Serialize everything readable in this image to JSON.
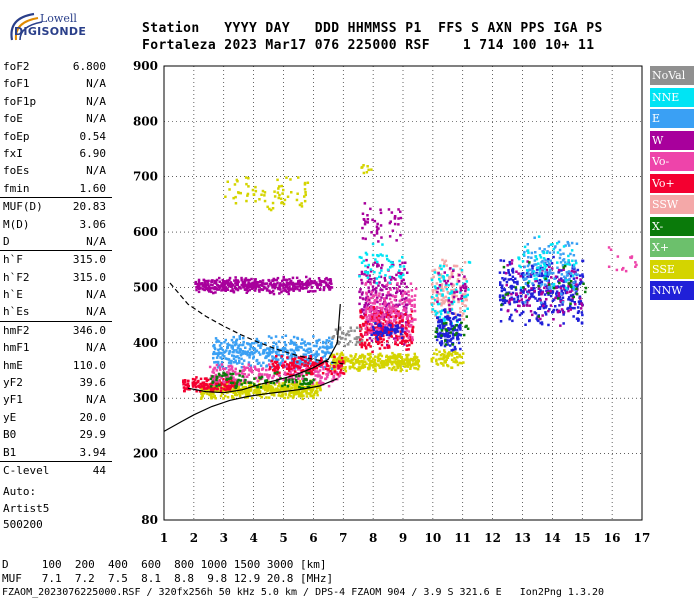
{
  "logo": {
    "line1": "Lowell",
    "line2": "DIGISONDE"
  },
  "header": {
    "line1": "Station   YYYY DAY   DDD HHMMSS P1  FFS S AXN PPS IGA PS",
    "line2": "Fortaleza 2023 Mar17 076 225000 RSF    1 714 100 10+ 11"
  },
  "params": [
    [
      {
        "label": "foF2",
        "value": "6.800"
      },
      {
        "label": "foF1",
        "value": "N/A"
      },
      {
        "label": "foF1p",
        "value": "N/A"
      },
      {
        "label": "foE",
        "value": "N/A"
      },
      {
        "label": "foEp",
        "value": "0.54"
      },
      {
        "label": "fxI",
        "value": "6.90"
      },
      {
        "label": "foEs",
        "value": "N/A"
      },
      {
        "label": "fmin",
        "value": "1.60"
      }
    ],
    [
      {
        "label": "MUF(D)",
        "value": "20.83"
      },
      {
        "label": "M(D)",
        "value": "3.06"
      },
      {
        "label": "D",
        "value": "N/A"
      }
    ],
    [
      {
        "label": "h`F",
        "value": "315.0"
      },
      {
        "label": "h`F2",
        "value": "315.0"
      },
      {
        "label": "h`E",
        "value": "N/A"
      },
      {
        "label": "h`Es",
        "value": "N/A"
      }
    ],
    [
      {
        "label": "hmF2",
        "value": "346.0"
      },
      {
        "label": "hmF1",
        "value": "N/A"
      },
      {
        "label": "hmE",
        "value": "110.0"
      },
      {
        "label": "yF2",
        "value": "39.6"
      },
      {
        "label": "yF1",
        "value": "N/A"
      },
      {
        "label": "yE",
        "value": "20.0"
      },
      {
        "label": "B0",
        "value": "29.9"
      },
      {
        "label": "B1",
        "value": "3.94"
      }
    ],
    [
      {
        "label": "C-level",
        "value": "44"
      }
    ]
  ],
  "auto": {
    "line1": "Auto:",
    "line2": "Artist5",
    "line3": "500200"
  },
  "legend": [
    {
      "name": "NoVal",
      "color": "#909090"
    },
    {
      "name": "NNE",
      "color": "#00e4f4"
    },
    {
      "name": "E",
      "color": "#3aa0f4"
    },
    {
      "name": "W",
      "color": "#a8009c"
    },
    {
      "name": "Vo-",
      "color": "#ee44aa"
    },
    {
      "name": "Vo+",
      "color": "#f40030"
    },
    {
      "name": "SSW",
      "color": "#f4a8a8"
    },
    {
      "name": "X-",
      "color": "#0a7a0a"
    },
    {
      "name": "X+",
      "color": "#6cc06c"
    },
    {
      "name": "SSE",
      "color": "#d4d400"
    },
    {
      "name": "NNW",
      "color": "#2020d8"
    }
  ],
  "bottom": {
    "line1": "D     100  200  400  600  800 1000 1500 3000 [km]",
    "line2": "MUF   7.1  7.2  7.5  8.1  8.8  9.8 12.9 20.8 [MHz]",
    "line3": "FZAOM_2023076225000.RSF / 320fx256h 50 kHz 5.0 km / DPS-4 FZAOM 904 / 3.9 S 321.6 E   Ion2Png 1.3.20"
  },
  "chart_data": {
    "type": "scatter",
    "xlim": [
      1,
      17
    ],
    "ylim": [
      80,
      900
    ],
    "xticks": [
      1,
      2,
      3,
      4,
      5,
      6,
      7,
      8,
      9,
      10,
      11,
      12,
      13,
      14,
      15,
      16,
      17
    ],
    "yticks": [
      80,
      200,
      300,
      400,
      500,
      600,
      700,
      800,
      900
    ],
    "grid": true,
    "clusters": [
      {
        "color": "#d4d400",
        "x": [
          2.2,
          6.2
        ],
        "y": [
          300,
          335
        ],
        "n": 500
      },
      {
        "color": "#d4d400",
        "x": [
          6.5,
          9.5
        ],
        "y": [
          350,
          385
        ],
        "n": 360
      },
      {
        "color": "#d4d400",
        "x": [
          3.0,
          5.8
        ],
        "y": [
          635,
          705
        ],
        "n": 70
      },
      {
        "color": "#d4d400",
        "x": [
          9.9,
          11.0
        ],
        "y": [
          355,
          395
        ],
        "n": 70
      },
      {
        "color": "#3aa0f4",
        "x": [
          2.6,
          6.6
        ],
        "y": [
          352,
          418
        ],
        "n": 420
      },
      {
        "color": "#f40030",
        "x": [
          1.6,
          3.4
        ],
        "y": [
          312,
          342
        ],
        "n": 140
      },
      {
        "color": "#ee44aa",
        "x": [
          2.5,
          6.9
        ],
        "y": [
          322,
          368
        ],
        "n": 240
      },
      {
        "color": "#f40030",
        "x": [
          4.5,
          7.0
        ],
        "y": [
          340,
          380
        ],
        "n": 140
      },
      {
        "color": "#0a7a0a",
        "x": [
          2.5,
          6.0
        ],
        "y": [
          318,
          352
        ],
        "n": 100
      },
      {
        "color": "#a8009c",
        "x": [
          2.0,
          6.6
        ],
        "y": [
          490,
          522
        ],
        "n": 460
      },
      {
        "color": "#a8009c",
        "x": [
          7.5,
          9.1
        ],
        "y": [
          395,
          560
        ],
        "n": 240
      },
      {
        "color": "#a8009c",
        "x": [
          7.6,
          8.9
        ],
        "y": [
          580,
          655
        ],
        "n": 45
      },
      {
        "color": "#f40030",
        "x": [
          7.5,
          9.3
        ],
        "y": [
          380,
          470
        ],
        "n": 240
      },
      {
        "color": "#ee44aa",
        "x": [
          7.7,
          9.4
        ],
        "y": [
          400,
          520
        ],
        "n": 190
      },
      {
        "color": "#2020d8",
        "x": [
          7.9,
          9.0
        ],
        "y": [
          405,
          440
        ],
        "n": 60
      },
      {
        "color": "#d4d400",
        "x": [
          7.5,
          7.9
        ],
        "y": [
          705,
          725
        ],
        "n": 8
      },
      {
        "color": "#00e4f4",
        "x": [
          7.5,
          9.0
        ],
        "y": [
          500,
          590
        ],
        "n": 50
      },
      {
        "color": "#909090",
        "x": [
          6.6,
          7.7
        ],
        "y": [
          390,
          440
        ],
        "n": 40
      },
      {
        "color": "#f4a8a8",
        "x": [
          9.9,
          11.1
        ],
        "y": [
          420,
          560
        ],
        "n": 150
      },
      {
        "color": "#00e4f4",
        "x": [
          9.9,
          11.2
        ],
        "y": [
          420,
          560
        ],
        "n": 70
      },
      {
        "color": "#2020d8",
        "x": [
          10.1,
          10.9
        ],
        "y": [
          380,
          470
        ],
        "n": 130
      },
      {
        "color": "#0a7a0a",
        "x": [
          10.0,
          11.2
        ],
        "y": [
          395,
          460
        ],
        "n": 25
      },
      {
        "color": "#a8009c",
        "x": [
          10.1,
          11.1
        ],
        "y": [
          460,
          550
        ],
        "n": 35
      },
      {
        "color": "#2020d8",
        "x": [
          12.2,
          15.0
        ],
        "y": [
          430,
          560
        ],
        "n": 340
      },
      {
        "color": "#a8009c",
        "x": [
          12.4,
          15.0
        ],
        "y": [
          430,
          560
        ],
        "n": 120
      },
      {
        "color": "#3aa0f4",
        "x": [
          13.0,
          14.8
        ],
        "y": [
          470,
          600
        ],
        "n": 120
      },
      {
        "color": "#00e4f4",
        "x": [
          12.8,
          14.8
        ],
        "y": [
          490,
          600
        ],
        "n": 60
      },
      {
        "color": "#0a7a0a",
        "x": [
          12.2,
          15.1
        ],
        "y": [
          445,
          555
        ],
        "n": 30
      },
      {
        "color": "#ee44aa",
        "x": [
          15.8,
          16.8
        ],
        "y": [
          520,
          590
        ],
        "n": 14
      }
    ],
    "traces": [
      {
        "style": "solid",
        "x": [
          1.8,
          2.4,
          3.0,
          3.6,
          4.2,
          4.8,
          5.4,
          6.0,
          6.5,
          6.8,
          6.9
        ],
        "y": [
          318,
          312,
          310,
          315,
          325,
          333,
          342,
          355,
          370,
          400,
          470
        ]
      },
      {
        "style": "solid",
        "x": [
          1.0,
          1.6,
          2.0,
          2.6,
          3.2,
          3.8,
          4.4,
          5.0,
          5.6,
          6.2,
          6.8
        ],
        "y": [
          240,
          258,
          270,
          285,
          296,
          303,
          308,
          312,
          316,
          322,
          335
        ]
      },
      {
        "style": "dashed",
        "x": [
          1.2,
          1.8,
          2.4,
          3.0,
          3.6,
          4.2,
          4.8,
          5.4,
          6.0,
          6.6,
          7.0
        ],
        "y": [
          508,
          470,
          448,
          430,
          414,
          400,
          388,
          378,
          370,
          365,
          362
        ]
      }
    ]
  }
}
